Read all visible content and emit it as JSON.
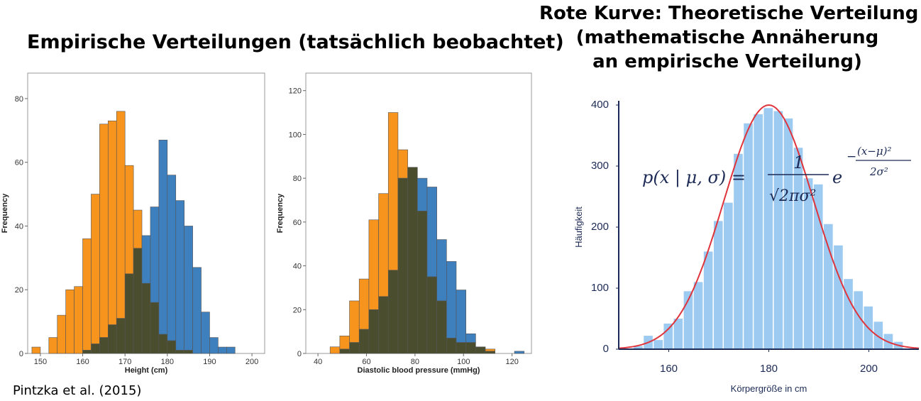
{
  "headings": {
    "left": "Empirische Verteilungen (tatsächlich beobachtet)",
    "right_lines": [
      "Rote Kurve: Theoretische Verteilung",
      "(mathematische Annäherung",
      "an empirische Verteilung)"
    ]
  },
  "citation": "Pintzka et al. (2015)",
  "formula": {
    "lhs": "p(x | μ, σ) =",
    "numerator": "1",
    "denominator": "√2πσ²",
    "base": "e",
    "exp_sign": "−",
    "exp_num": "(x−μ)²",
    "exp_den": "2σ²"
  },
  "colors": {
    "orange": "#f7941d",
    "blue": "#3e7fbe",
    "overlap": "#4b4e2e",
    "light_blue": "#9ccaf0",
    "red_curve": "#e0343c"
  },
  "chart_data": [
    {
      "type": "bar",
      "subtype": "overlapping-histogram",
      "xlabel": "Height (cm)",
      "ylabel": "Frequency",
      "xlim": [
        147,
        203
      ],
      "ylim": [
        0,
        88
      ],
      "xticks": [
        150,
        160,
        170,
        180,
        190,
        200
      ],
      "yticks": [
        0,
        20,
        40,
        60,
        80
      ],
      "bin_width": 2,
      "series": [
        {
          "color": "orange",
          "bins": [
            [
              148,
              2
            ],
            [
              152,
              5
            ],
            [
              154,
              12
            ],
            [
              156,
              20
            ],
            [
              158,
              21
            ],
            [
              160,
              36
            ],
            [
              162,
              50
            ],
            [
              164,
              72
            ],
            [
              166,
              73
            ],
            [
              168,
              76
            ],
            [
              170,
              59
            ],
            [
              172,
              45
            ],
            [
              174,
              22
            ],
            [
              176,
              16
            ],
            [
              178,
              6
            ],
            [
              180,
              4
            ],
            [
              182,
              1
            ],
            [
              184,
              1
            ]
          ]
        },
        {
          "color": "blue",
          "bins": [
            [
              160,
              1
            ],
            [
              162,
              3
            ],
            [
              164,
              5
            ],
            [
              166,
              9
            ],
            [
              168,
              11
            ],
            [
              170,
              25
            ],
            [
              172,
              33
            ],
            [
              174,
              37
            ],
            [
              176,
              46
            ],
            [
              178,
              67
            ],
            [
              180,
              56
            ],
            [
              182,
              48
            ],
            [
              184,
              40
            ],
            [
              186,
              27
            ],
            [
              188,
              13
            ],
            [
              190,
              5
            ],
            [
              192,
              2
            ],
            [
              194,
              2
            ]
          ]
        }
      ]
    },
    {
      "type": "bar",
      "subtype": "overlapping-histogram",
      "xlabel": "Diastolic blood pressure (mmHg)",
      "ylabel": "Frequency",
      "xlim": [
        35,
        128
      ],
      "ylim": [
        0,
        128
      ],
      "xticks": [
        40,
        60,
        80,
        100,
        120
      ],
      "yticks": [
        0,
        20,
        40,
        60,
        80,
        100,
        120
      ],
      "bin_width": 4,
      "series": [
        {
          "color": "orange",
          "bins": [
            [
              45,
              3
            ],
            [
              49,
              8
            ],
            [
              53,
              24
            ],
            [
              57,
              34
            ],
            [
              61,
              61
            ],
            [
              65,
              73
            ],
            [
              69,
              110
            ],
            [
              73,
              93
            ],
            [
              77,
              85
            ],
            [
              81,
              65
            ],
            [
              85,
              35
            ],
            [
              89,
              24
            ],
            [
              93,
              7
            ],
            [
              97,
              5
            ],
            [
              101,
              5
            ],
            [
              105,
              3
            ],
            [
              109,
              2
            ]
          ]
        },
        {
          "color": "blue",
          "bins": [
            [
              49,
              2
            ],
            [
              53,
              5
            ],
            [
              57,
              11
            ],
            [
              61,
              20
            ],
            [
              65,
              26
            ],
            [
              69,
              38
            ],
            [
              73,
              80
            ],
            [
              77,
              85
            ],
            [
              81,
              80
            ],
            [
              85,
              76
            ],
            [
              89,
              52
            ],
            [
              93,
              42
            ],
            [
              97,
              29
            ],
            [
              101,
              9
            ],
            [
              105,
              3
            ],
            [
              109,
              1
            ],
            [
              121,
              1
            ]
          ]
        }
      ]
    },
    {
      "type": "bar",
      "subtype": "histogram-with-normal-curve",
      "xlabel": "Körpergröße in cm",
      "ylabel": "Häufigkeit",
      "xlim": [
        150,
        210
      ],
      "ylim": [
        0,
        400
      ],
      "xticks": [
        160,
        180,
        200
      ],
      "yticks": [
        0,
        100,
        200,
        300,
        400
      ],
      "bin_width": 2,
      "bins": [
        [
          153,
          5
        ],
        [
          155,
          22
        ],
        [
          157,
          15
        ],
        [
          159,
          42
        ],
        [
          161,
          50
        ],
        [
          163,
          95
        ],
        [
          165,
          110
        ],
        [
          167,
          160
        ],
        [
          169,
          210
        ],
        [
          171,
          240
        ],
        [
          173,
          320
        ],
        [
          175,
          370
        ],
        [
          177,
          385
        ],
        [
          179,
          395
        ],
        [
          181,
          390
        ],
        [
          183,
          378
        ],
        [
          185,
          330
        ],
        [
          187,
          280
        ],
        [
          189,
          270
        ],
        [
          191,
          205
        ],
        [
          193,
          170
        ],
        [
          195,
          115
        ],
        [
          197,
          95
        ],
        [
          199,
          70
        ],
        [
          201,
          45
        ],
        [
          203,
          25
        ],
        [
          205,
          12
        ]
      ],
      "curve": {
        "mu": 180,
        "sigma": 9,
        "peak": 400,
        "color": "red_curve"
      }
    }
  ]
}
